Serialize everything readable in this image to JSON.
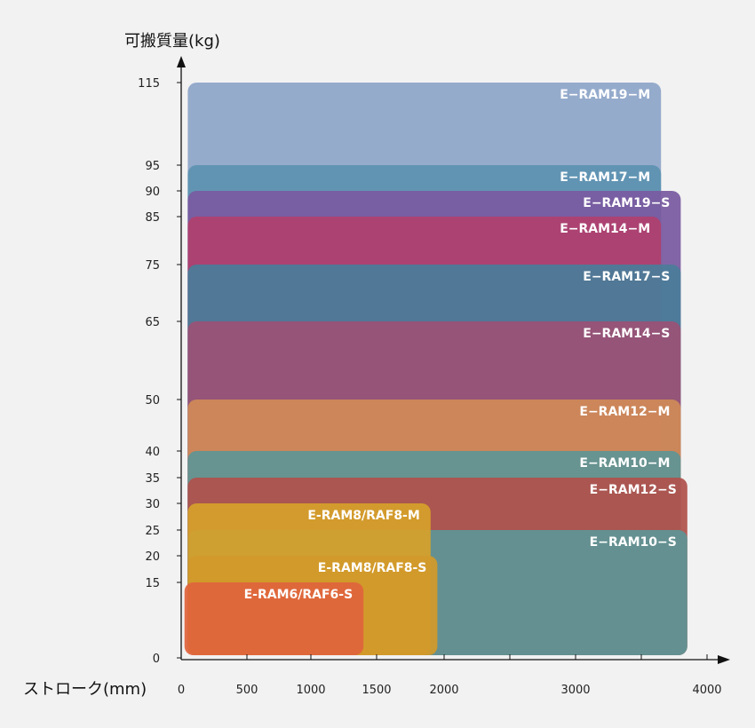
{
  "chart_data": {
    "type": "area",
    "title": "",
    "xlabel": "ストローク(mm)",
    "ylabel": "可搬質量(kg)",
    "x_ticks": [
      0,
      500,
      1000,
      1500,
      2000,
      3000,
      4000
    ],
    "y_ticks": [
      0,
      15,
      20,
      25,
      30,
      35,
      40,
      50,
      65,
      75,
      85,
      90,
      95,
      115
    ],
    "grid": false,
    "series": [
      {
        "name": "E−RAM19−M",
        "payload_kg": 115,
        "stroke_min_mm": 50,
        "stroke_max_mm": 3650,
        "color": "#8ea6c9"
      },
      {
        "name": "E−RAM17−M",
        "payload_kg": 95,
        "stroke_min_mm": 50,
        "stroke_max_mm": 3650,
        "color": "#5d92b0"
      },
      {
        "name": "E−RAM19−S",
        "payload_kg": 90,
        "stroke_min_mm": 50,
        "stroke_max_mm": 3800,
        "color": "#7a5aa0"
      },
      {
        "name": "E−RAM14−M",
        "payload_kg": 85,
        "stroke_min_mm": 50,
        "stroke_max_mm": 3650,
        "color": "#b0416e"
      },
      {
        "name": "E−RAM17−S",
        "payload_kg": 75,
        "stroke_min_mm": 50,
        "stroke_max_mm": 3800,
        "color": "#4a7d99"
      },
      {
        "name": "E−RAM14−S",
        "payload_kg": 65,
        "stroke_min_mm": 50,
        "stroke_max_mm": 3800,
        "color": "#9a5275"
      },
      {
        "name": "E−RAM12−M",
        "payload_kg": 50,
        "stroke_min_mm": 50,
        "stroke_max_mm": 3800,
        "color": "#d08a58"
      },
      {
        "name": "E−RAM10−M",
        "payload_kg": 40,
        "stroke_min_mm": 50,
        "stroke_max_mm": 3800,
        "color": "#5f9494"
      },
      {
        "name": "E−RAM12−S",
        "payload_kg": 35,
        "stroke_min_mm": 50,
        "stroke_max_mm": 3850,
        "color": "#b0524c"
      },
      {
        "name": "E−RAM10−S",
        "payload_kg": 25,
        "stroke_min_mm": 50,
        "stroke_max_mm": 3850,
        "color": "#5f9496"
      },
      {
        "name": "E-RAM8/RAF8-M",
        "payload_kg": 30,
        "stroke_min_mm": 50,
        "stroke_max_mm": 1900,
        "color": "#d6a02a"
      },
      {
        "name": "E-RAM8/RAF8-S",
        "payload_kg": 20,
        "stroke_min_mm": 50,
        "stroke_max_mm": 1950,
        "color": "#d29a2a"
      },
      {
        "name": "E-RAM6/RAF6-S",
        "payload_kg": 15,
        "stroke_min_mm": 25,
        "stroke_max_mm": 1400,
        "color": "#e0643c"
      }
    ]
  }
}
